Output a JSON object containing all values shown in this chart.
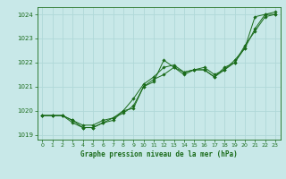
{
  "title": "Graphe pression niveau de la mer (hPa)",
  "bg_color": "#c8e8e8",
  "grid_color": "#b0d8d8",
  "line_color": "#1a6b1a",
  "xlim": [
    -0.5,
    23.5
  ],
  "ylim": [
    1018.8,
    1024.3
  ],
  "yticks": [
    1019,
    1020,
    1021,
    1022,
    1023,
    1024
  ],
  "xticks": [
    0,
    1,
    2,
    3,
    4,
    5,
    6,
    7,
    8,
    9,
    10,
    11,
    12,
    13,
    14,
    15,
    16,
    17,
    18,
    19,
    20,
    21,
    22,
    23
  ],
  "series": [
    [
      1019.8,
      1019.8,
      1019.8,
      1019.6,
      1019.3,
      1019.3,
      1019.5,
      1019.6,
      1020.0,
      1020.1,
      1021.0,
      1021.2,
      1022.1,
      1021.8,
      1021.5,
      1021.7,
      1021.7,
      1021.4,
      1021.7,
      1022.0,
      1022.6,
      1023.9,
      1024.0,
      1024.0
    ],
    [
      1019.8,
      1019.8,
      1019.8,
      1019.6,
      1019.4,
      1019.4,
      1019.6,
      1019.7,
      1020.0,
      1020.5,
      1021.1,
      1021.4,
      1021.8,
      1021.9,
      1021.6,
      1021.7,
      1021.7,
      1021.4,
      1021.8,
      1022.0,
      1022.7,
      1023.3,
      1023.9,
      1024.0
    ],
    [
      1019.8,
      1019.8,
      1019.8,
      1019.5,
      1019.3,
      1019.3,
      1019.5,
      1019.7,
      1019.9,
      1020.2,
      1021.0,
      1021.3,
      1021.5,
      1021.8,
      1021.6,
      1021.7,
      1021.8,
      1021.5,
      1021.7,
      1022.1,
      1022.6,
      1023.4,
      1024.0,
      1024.1
    ]
  ]
}
